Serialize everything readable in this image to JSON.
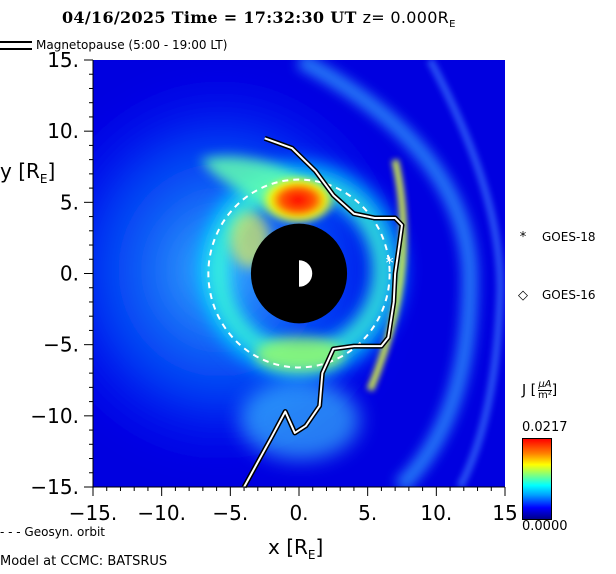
{
  "header": {
    "title_main": "04/16/2025 Time = 17:32:30 UT",
    "title_z_prefix": "z= 0.000R",
    "title_z_sub": "E"
  },
  "legend": {
    "magnetopause_label": "Magnetopause (5:00 - 19:00 LT)",
    "geosyn_label": "- - - Geosyn. orbit"
  },
  "footer": {
    "model_label": "Model at CCMC: BATSRUS"
  },
  "satellites": [
    {
      "name": "GOES-18",
      "marker": "*",
      "x": 6.6,
      "y": 0.8
    },
    {
      "name": "GOES-16",
      "marker": "◇"
    }
  ],
  "colorbar": {
    "label_prefix": "J [",
    "label_num": "µA",
    "label_den": "m²",
    "label_suffix": "]",
    "max_label": "0.0217",
    "min_label": "0.0000",
    "colors": [
      "#00008b",
      "#0000ff",
      "#00a0ff",
      "#00ffff",
      "#7fff7f",
      "#ffff00",
      "#ff8000",
      "#ff0000"
    ]
  },
  "chart_data": {
    "type": "heatmap",
    "xlabel": "x [R",
    "xlabel_sub": "E",
    "xlabel_suffix": "]",
    "ylabel": "y [R",
    "ylabel_sub": "E",
    "ylabel_suffix": "]",
    "xlim": [
      -15,
      15
    ],
    "ylim": [
      -15,
      15
    ],
    "xticks": [
      {
        "value": -15,
        "label": "-15."
      },
      {
        "value": -10,
        "label": "-10."
      },
      {
        "value": -5,
        "label": "-5."
      },
      {
        "value": 0,
        "label": "0."
      },
      {
        "value": 5,
        "label": "5."
      },
      {
        "value": 10,
        "label": "10."
      },
      {
        "value": 15,
        "label": "15"
      }
    ],
    "yticks": [
      {
        "value": 15,
        "label": "15."
      },
      {
        "value": 10,
        "label": "10."
      },
      {
        "value": 5,
        "label": "5."
      },
      {
        "value": 0,
        "label": "0."
      },
      {
        "value": -5,
        "label": "-5."
      },
      {
        "value": -10,
        "label": "-10."
      },
      {
        "value": -15,
        "label": "-15."
      }
    ],
    "inner_boundary_radius": 3.5,
    "geosynchronous_radius": 6.6,
    "magnetopause": [
      [
        -2.5,
        9.5
      ],
      [
        -0.5,
        8.8
      ],
      [
        1.2,
        7.2
      ],
      [
        2.5,
        5.5
      ],
      [
        4,
        4.2
      ],
      [
        5.5,
        3.9
      ],
      [
        7,
        3.9
      ],
      [
        7.5,
        3.4
      ],
      [
        7.3,
        2
      ],
      [
        7,
        0
      ],
      [
        6.9,
        -2
      ],
      [
        6.5,
        -4.5
      ],
      [
        6,
        -5.1
      ],
      [
        4,
        -5.1
      ],
      [
        2.5,
        -5.3
      ],
      [
        1.7,
        -7
      ],
      [
        1.5,
        -9.3
      ],
      [
        0.5,
        -10.7
      ],
      [
        -0.3,
        -11.2
      ],
      [
        -1,
        -9.7
      ],
      [
        -2,
        -11.5
      ],
      [
        -4,
        -15
      ]
    ]
  }
}
